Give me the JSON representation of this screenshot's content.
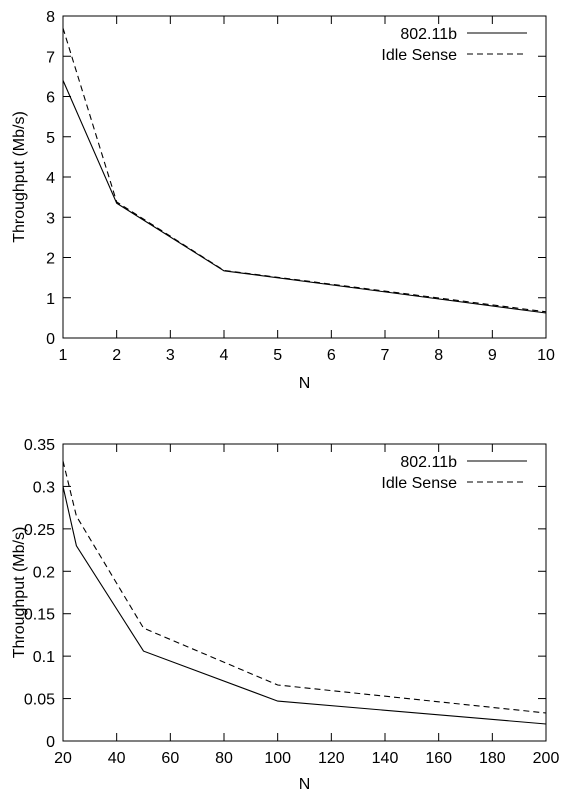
{
  "chart_data": [
    {
      "type": "line",
      "xlabel": "N",
      "ylabel": "Throughput (Mb/s)",
      "xlim": [
        1,
        10
      ],
      "ylim": [
        0,
        8
      ],
      "xticks": [
        "1",
        "2",
        "3",
        "4",
        "5",
        "6",
        "7",
        "8",
        "9",
        "10"
      ],
      "yticks": [
        "0",
        "1",
        "2",
        "3",
        "4",
        "5",
        "6",
        "7",
        "8"
      ],
      "legend_position": "top-right",
      "series": [
        {
          "name": "802.11b",
          "style": "solid",
          "x": [
            1,
            2,
            4,
            10
          ],
          "y": [
            6.4,
            3.35,
            1.67,
            0.62
          ]
        },
        {
          "name": "Idle Sense",
          "style": "dashed",
          "x": [
            1,
            2,
            4,
            10
          ],
          "y": [
            7.7,
            3.38,
            1.68,
            0.65
          ]
        }
      ]
    },
    {
      "type": "line",
      "xlabel": "N",
      "ylabel": "Throughput (Mb/s)",
      "xlim": [
        20,
        200
      ],
      "ylim": [
        0,
        0.35
      ],
      "xticks": [
        "20",
        "40",
        "60",
        "80",
        "100",
        "120",
        "140",
        "160",
        "180",
        "200"
      ],
      "yticks": [
        "0",
        "0.05",
        "0.1",
        "0.15",
        "0.2",
        "0.25",
        "0.3",
        "0.35"
      ],
      "legend_position": "top-right",
      "series": [
        {
          "name": "802.11b",
          "style": "solid",
          "x": [
            20,
            25,
            50,
            100,
            200
          ],
          "y": [
            0.3,
            0.23,
            0.106,
            0.047,
            0.02
          ]
        },
        {
          "name": "Idle Sense",
          "style": "dashed",
          "x": [
            20,
            25,
            50,
            100,
            200
          ],
          "y": [
            0.33,
            0.265,
            0.133,
            0.066,
            0.033
          ]
        }
      ]
    }
  ]
}
